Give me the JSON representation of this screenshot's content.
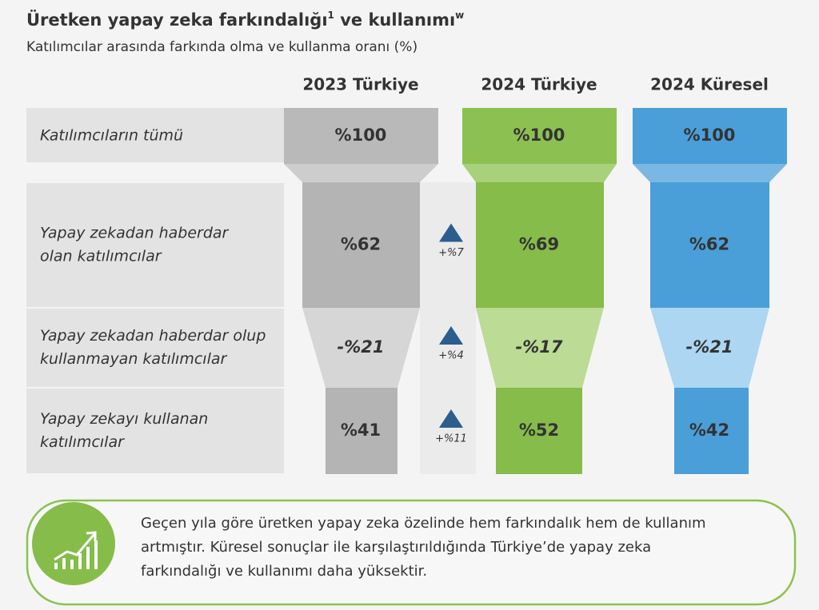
{
  "header": {
    "title": "Üretken yapay zeka farkındalığı",
    "title_note": "1",
    "title_end": " ve kullanımı",
    "title_end_note": "w",
    "subtitle": "Katılımcılar arasında farkında olma ve kullanma oranı (%)"
  },
  "columns": [
    "2023 Türkiye",
    "2024 Türkiye",
    "2024 Küresel"
  ],
  "rows": [
    {
      "label": [
        "Katılımcıların tümü"
      ],
      "cells": [
        "%100",
        "%100",
        "%100"
      ]
    },
    {
      "label": [
        "Yapay zekadan haberdar",
        "olan katılımcılar"
      ],
      "cells": [
        "%62",
        "%69",
        "%62"
      ],
      "change": "+%7"
    },
    {
      "label": [
        "Yapay zekadan haberdar olup",
        "kullanmayan katılımcılar"
      ],
      "cells": [
        "-%21",
        "-%17",
        "-%21"
      ],
      "change": "+%4"
    },
    {
      "label": [
        "Yapay zekayı kullanan",
        "katılımcılar"
      ],
      "cells": [
        "%41",
        "%52",
        "%42"
      ],
      "change": "+%11"
    }
  ],
  "callout": {
    "lines": [
      "Geçen yıla göre üretken yapay zeka özelinde hem farkındalık hem de kullanım",
      "artmıştır. Küresel sonuçlar ile karşılaştırıldığında Türkiye’de yapay zeka",
      "farkındalığı ve kullanımı daha yüksektir."
    ]
  }
}
